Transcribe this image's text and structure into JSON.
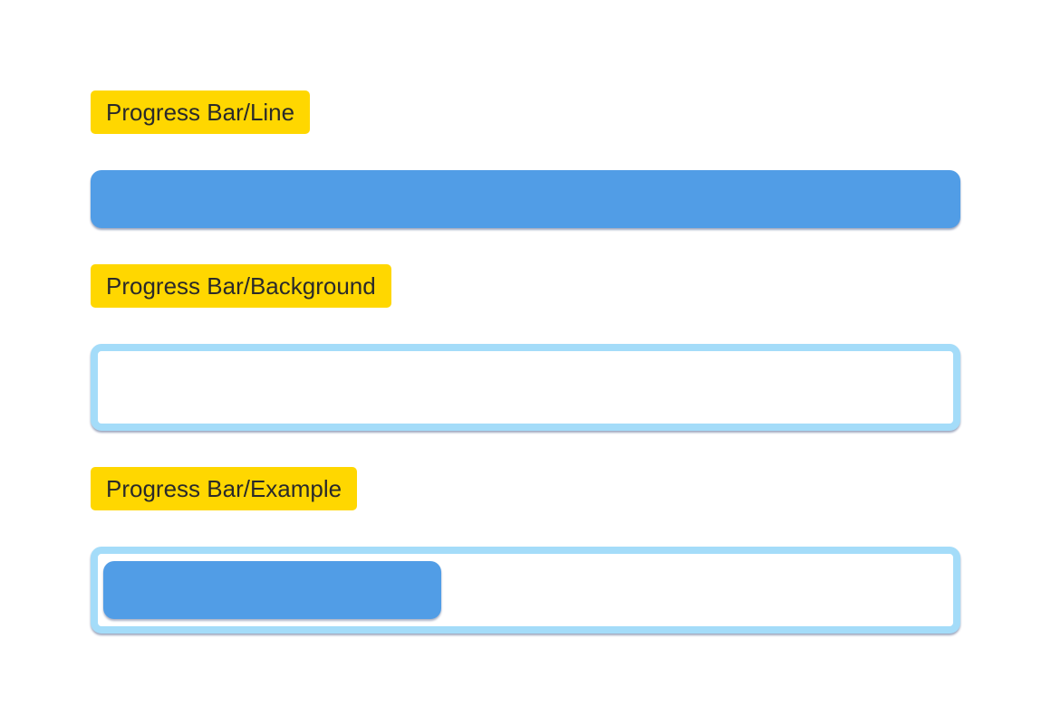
{
  "colors": {
    "label_background": "#FFD700",
    "bar_fill": "#519DE6",
    "bar_border": "#A4DCF9"
  },
  "components": {
    "line": {
      "label": "Progress Bar/Line"
    },
    "background": {
      "label": "Progress Bar/Background"
    },
    "example": {
      "label": "Progress Bar/Example",
      "progress_fraction": 0.4
    }
  }
}
